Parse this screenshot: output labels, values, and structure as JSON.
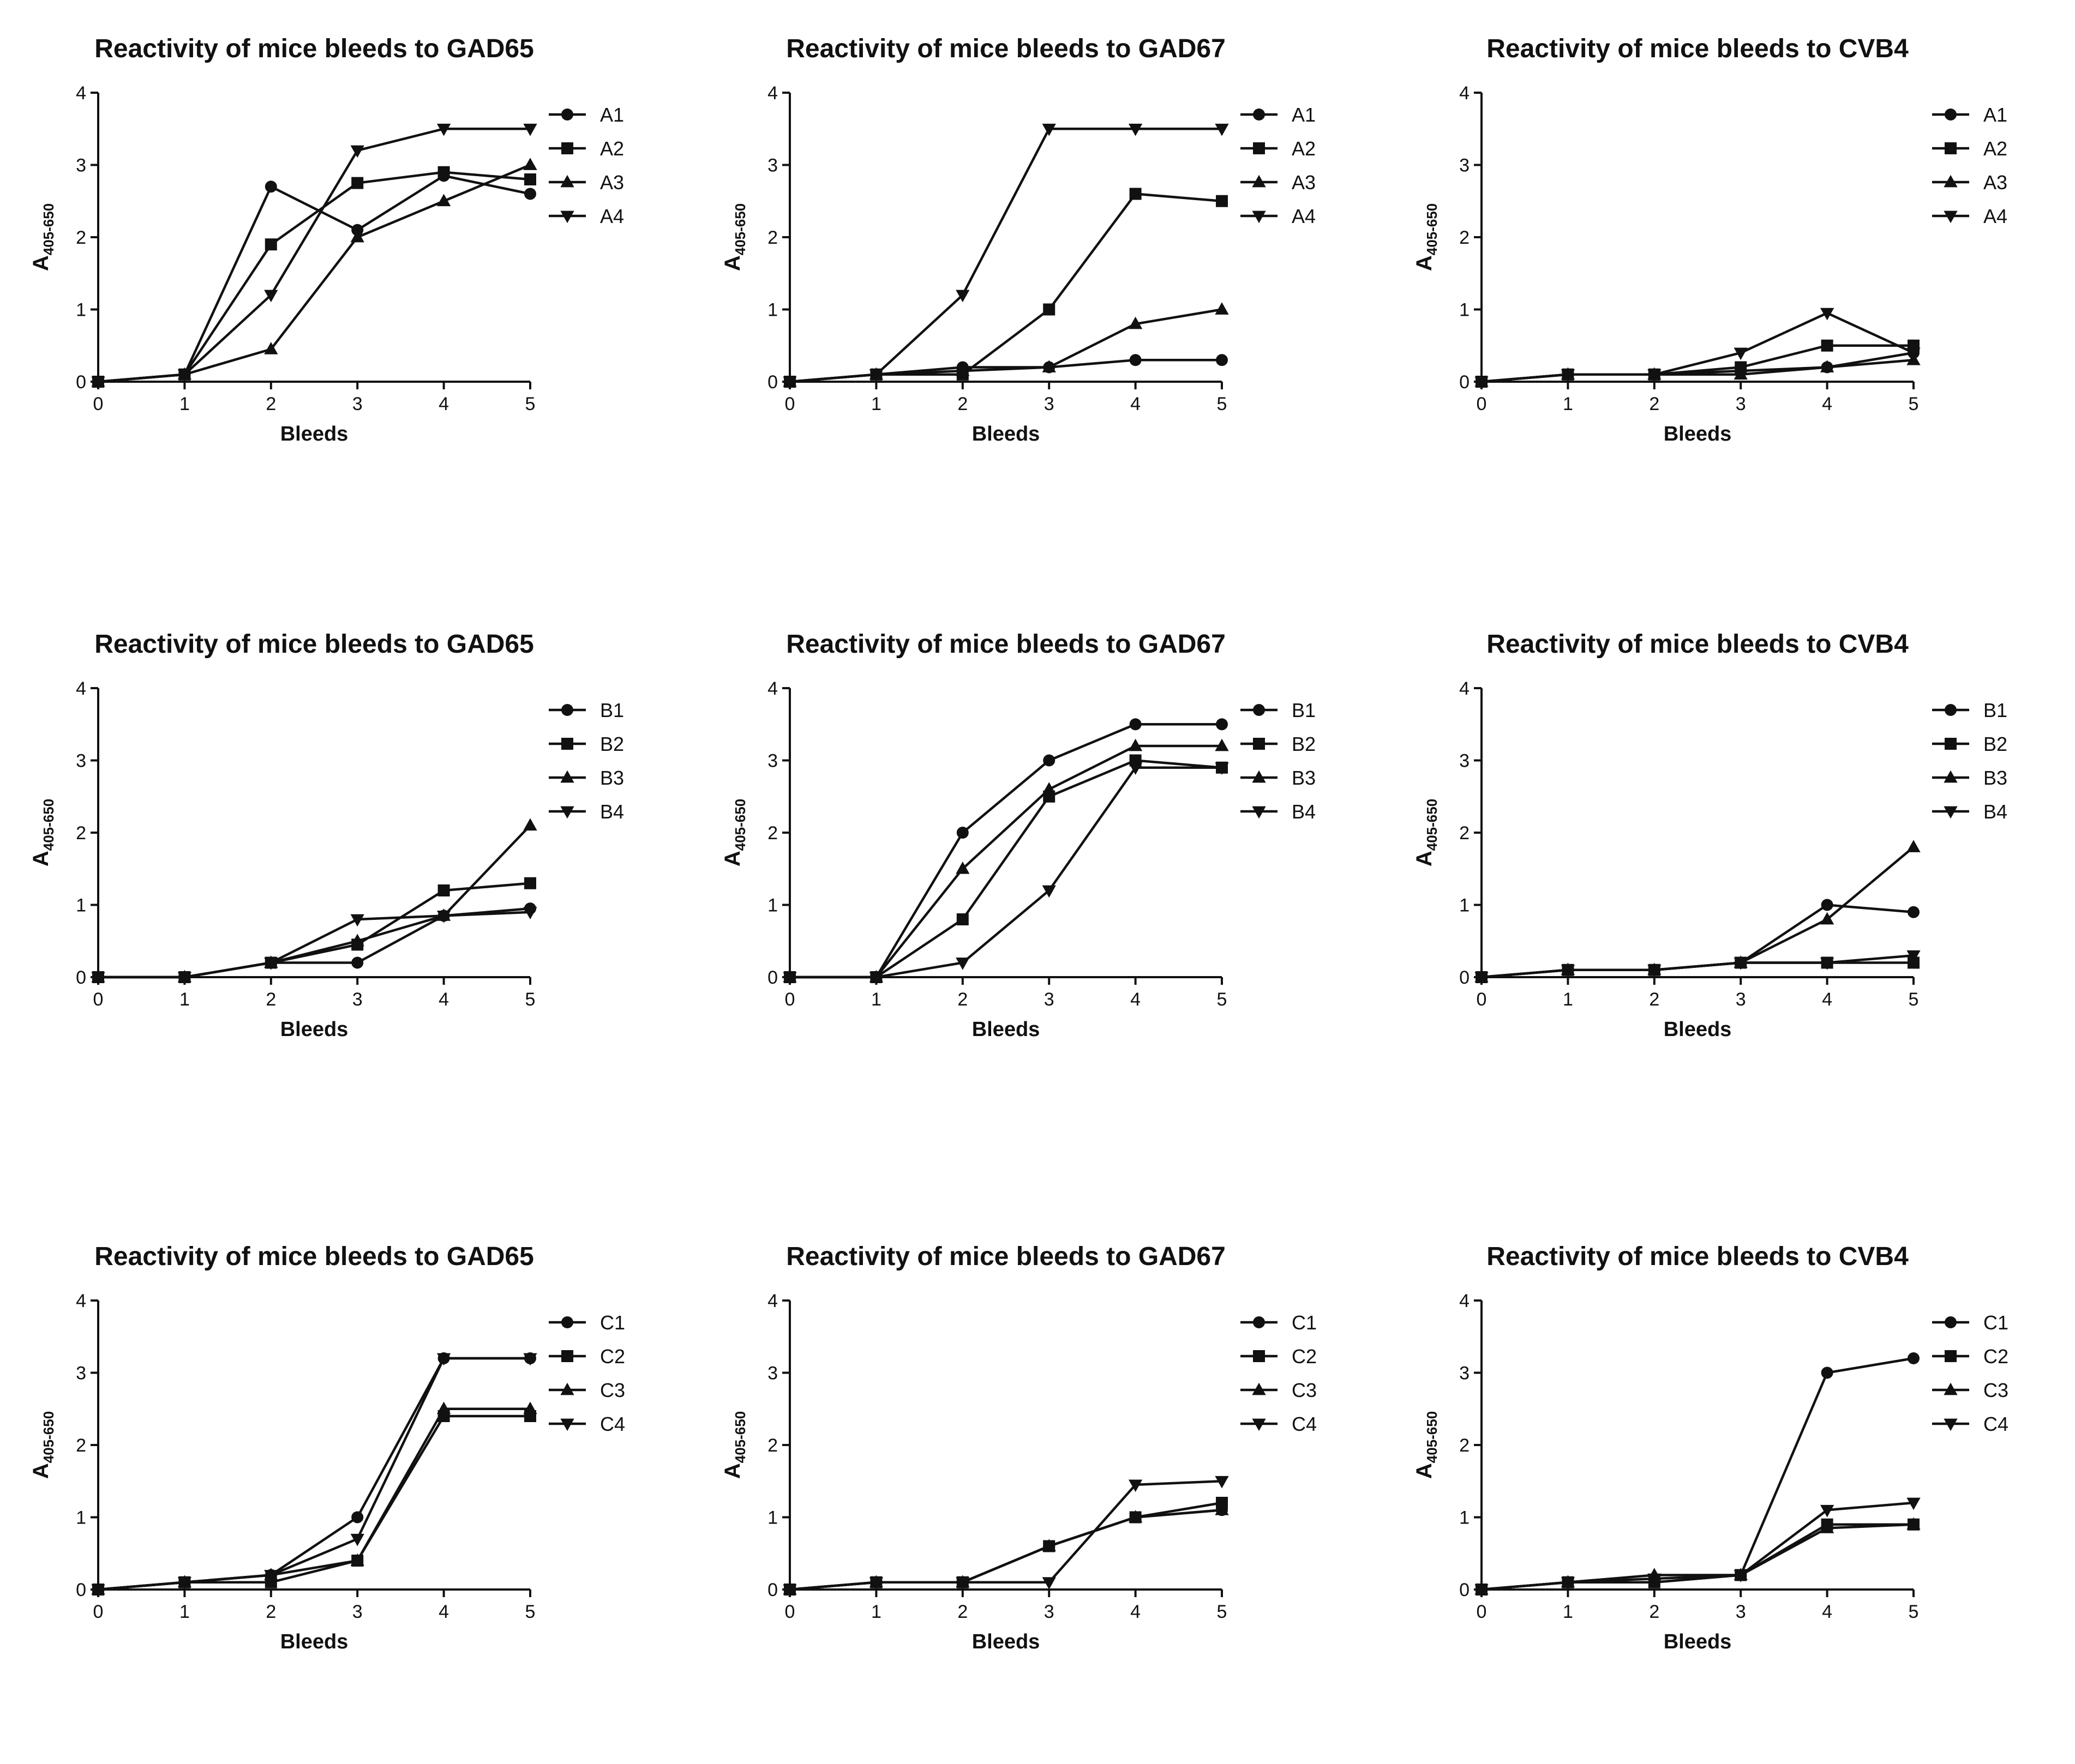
{
  "chart_data": [
    {
      "type": "line",
      "title": "Reactivity of mice bleeds to GAD65",
      "xlabel": "Bleeds",
      "ylabel": "A",
      "ylabel_sub": "405-650",
      "x": [
        0,
        1,
        2,
        3,
        4,
        5
      ],
      "xlim": [
        0,
        5
      ],
      "ylim": [
        0,
        4
      ],
      "yticks": [
        0,
        1,
        2,
        3,
        4
      ],
      "legend": "top-right",
      "series": [
        {
          "name": "A1",
          "marker": "circle",
          "values": [
            0,
            0.1,
            2.7,
            2.1,
            2.85,
            2.6
          ]
        },
        {
          "name": "A2",
          "marker": "square",
          "values": [
            0,
            0.1,
            1.9,
            2.75,
            2.9,
            2.8
          ]
        },
        {
          "name": "A3",
          "marker": "triangle-up",
          "values": [
            0,
            0.1,
            0.45,
            2.0,
            2.5,
            3.0
          ]
        },
        {
          "name": "A4",
          "marker": "triangle-down",
          "values": [
            0,
            0.1,
            1.2,
            3.2,
            3.5,
            3.5
          ]
        }
      ]
    },
    {
      "type": "line",
      "title": "Reactivity of mice bleeds to GAD67",
      "xlabel": "Bleeds",
      "ylabel": "A",
      "ylabel_sub": "405-650",
      "x": [
        0,
        1,
        2,
        3,
        4,
        5
      ],
      "xlim": [
        0,
        5
      ],
      "ylim": [
        0,
        4
      ],
      "yticks": [
        0,
        1,
        2,
        3,
        4
      ],
      "legend": "top-right",
      "series": [
        {
          "name": "A1",
          "marker": "circle",
          "values": [
            0,
            0.1,
            0.2,
            0.2,
            0.3,
            0.3
          ]
        },
        {
          "name": "A2",
          "marker": "square",
          "values": [
            0,
            0.1,
            0.1,
            1.0,
            2.6,
            2.5
          ]
        },
        {
          "name": "A3",
          "marker": "triangle-up",
          "values": [
            0,
            0.1,
            0.15,
            0.2,
            0.8,
            1.0
          ]
        },
        {
          "name": "A4",
          "marker": "triangle-down",
          "values": [
            0,
            0.1,
            1.2,
            3.5,
            3.5,
            3.5
          ]
        }
      ]
    },
    {
      "type": "line",
      "title": "Reactivity of mice bleeds to CVB4",
      "xlabel": "Bleeds",
      "ylabel": "A",
      "ylabel_sub": "405-650",
      "x": [
        0,
        1,
        2,
        3,
        4,
        5
      ],
      "xlim": [
        0,
        5
      ],
      "ylim": [
        0,
        4
      ],
      "yticks": [
        0,
        1,
        2,
        3,
        4
      ],
      "legend": "top-right",
      "series": [
        {
          "name": "A1",
          "marker": "circle",
          "values": [
            0,
            0.1,
            0.1,
            0.15,
            0.2,
            0.4
          ]
        },
        {
          "name": "A2",
          "marker": "square",
          "values": [
            0,
            0.1,
            0.1,
            0.2,
            0.5,
            0.5
          ]
        },
        {
          "name": "A3",
          "marker": "triangle-up",
          "values": [
            0,
            0.1,
            0.1,
            0.1,
            0.2,
            0.3
          ]
        },
        {
          "name": "A4",
          "marker": "triangle-down",
          "values": [
            0,
            0.1,
            0.1,
            0.4,
            0.95,
            0.4
          ]
        }
      ]
    },
    {
      "type": "line",
      "title": "Reactivity of mice bleeds to GAD65",
      "xlabel": "Bleeds",
      "ylabel": "A",
      "ylabel_sub": "405-650",
      "x": [
        0,
        1,
        2,
        3,
        4,
        5
      ],
      "xlim": [
        0,
        5
      ],
      "ylim": [
        0,
        4
      ],
      "yticks": [
        0,
        1,
        2,
        3,
        4
      ],
      "legend": "top-right",
      "series": [
        {
          "name": "B1",
          "marker": "circle",
          "values": [
            0,
            0,
            0.2,
            0.2,
            0.85,
            0.95
          ]
        },
        {
          "name": "B2",
          "marker": "square",
          "values": [
            0,
            0,
            0.2,
            0.45,
            1.2,
            1.3
          ]
        },
        {
          "name": "B3",
          "marker": "triangle-up",
          "values": [
            0,
            0,
            0.2,
            0.5,
            0.85,
            2.1
          ]
        },
        {
          "name": "B4",
          "marker": "triangle-down",
          "values": [
            0,
            0,
            0.2,
            0.8,
            0.85,
            0.9
          ]
        }
      ]
    },
    {
      "type": "line",
      "title": "Reactivity of mice bleeds to GAD67",
      "xlabel": "Bleeds",
      "ylabel": "A",
      "ylabel_sub": "405-650",
      "x": [
        0,
        1,
        2,
        3,
        4,
        5
      ],
      "xlim": [
        0,
        5
      ],
      "ylim": [
        0,
        4
      ],
      "yticks": [
        0,
        1,
        2,
        3,
        4
      ],
      "legend": "top-right",
      "series": [
        {
          "name": "B1",
          "marker": "circle",
          "values": [
            0,
            0,
            2.0,
            3.0,
            3.5,
            3.5
          ]
        },
        {
          "name": "B2",
          "marker": "square",
          "values": [
            0,
            0,
            0.8,
            2.5,
            3.0,
            2.9
          ]
        },
        {
          "name": "B3",
          "marker": "triangle-up",
          "values": [
            0,
            0,
            1.5,
            2.6,
            3.2,
            3.2
          ]
        },
        {
          "name": "B4",
          "marker": "triangle-down",
          "values": [
            0,
            0,
            0.2,
            1.2,
            2.9,
            2.9
          ]
        }
      ]
    },
    {
      "type": "line",
      "title": "Reactivity of mice bleeds to CVB4",
      "xlabel": "Bleeds",
      "ylabel": "A",
      "ylabel_sub": "405-650",
      "x": [
        0,
        1,
        2,
        3,
        4,
        5
      ],
      "xlim": [
        0,
        5
      ],
      "ylim": [
        0,
        4
      ],
      "yticks": [
        0,
        1,
        2,
        3,
        4
      ],
      "legend": "top-right",
      "series": [
        {
          "name": "B1",
          "marker": "circle",
          "values": [
            0,
            0.1,
            0.1,
            0.2,
            1.0,
            0.9
          ]
        },
        {
          "name": "B2",
          "marker": "square",
          "values": [
            0,
            0.1,
            0.1,
            0.2,
            0.2,
            0.2
          ]
        },
        {
          "name": "B3",
          "marker": "triangle-up",
          "values": [
            0,
            0.1,
            0.1,
            0.2,
            0.8,
            1.8
          ]
        },
        {
          "name": "B4",
          "marker": "triangle-down",
          "values": [
            0,
            0.1,
            0.1,
            0.2,
            0.2,
            0.3
          ]
        }
      ]
    },
    {
      "type": "line",
      "title": "Reactivity of mice bleeds to GAD65",
      "xlabel": "Bleeds",
      "ylabel": "A",
      "ylabel_sub": "405-650",
      "x": [
        0,
        1,
        2,
        3,
        4,
        5
      ],
      "xlim": [
        0,
        5
      ],
      "ylim": [
        0,
        4
      ],
      "yticks": [
        0,
        1,
        2,
        3,
        4
      ],
      "legend": "top-right",
      "series": [
        {
          "name": "C1",
          "marker": "circle",
          "values": [
            0,
            0.1,
            0.2,
            1.0,
            3.2,
            3.2
          ]
        },
        {
          "name": "C2",
          "marker": "square",
          "values": [
            0,
            0.1,
            0.1,
            0.4,
            2.4,
            2.4
          ]
        },
        {
          "name": "C3",
          "marker": "triangle-up",
          "values": [
            0,
            0.1,
            0.2,
            0.4,
            2.5,
            2.5
          ]
        },
        {
          "name": "C4",
          "marker": "triangle-down",
          "values": [
            0,
            0.1,
            0.2,
            0.7,
            3.2,
            3.2
          ]
        }
      ]
    },
    {
      "type": "line",
      "title": "Reactivity of mice bleeds to GAD67",
      "xlabel": "Bleeds",
      "ylabel": "A",
      "ylabel_sub": "405-650",
      "x": [
        0,
        1,
        2,
        3,
        4,
        5
      ],
      "xlim": [
        0,
        5
      ],
      "ylim": [
        0,
        4
      ],
      "yticks": [
        0,
        1,
        2,
        3,
        4
      ],
      "legend": "top-right",
      "series": [
        {
          "name": "C1",
          "marker": "circle",
          "values": [
            0,
            0.1,
            0.1,
            0.6,
            1.0,
            1.1
          ]
        },
        {
          "name": "C2",
          "marker": "square",
          "values": [
            0,
            0.1,
            0.1,
            0.6,
            1.0,
            1.2
          ]
        },
        {
          "name": "C3",
          "marker": "triangle-up",
          "values": [
            0,
            0.1,
            0.1,
            0.6,
            1.0,
            1.1
          ]
        },
        {
          "name": "C4",
          "marker": "triangle-down",
          "values": [
            0,
            0.1,
            0.1,
            0.1,
            1.45,
            1.5
          ]
        }
      ]
    },
    {
      "type": "line",
      "title": "Reactivity of mice bleeds to CVB4",
      "xlabel": "Bleeds",
      "ylabel": "A",
      "ylabel_sub": "405-650",
      "x": [
        0,
        1,
        2,
        3,
        4,
        5
      ],
      "xlim": [
        0,
        5
      ],
      "ylim": [
        0,
        4
      ],
      "yticks": [
        0,
        1,
        2,
        3,
        4
      ],
      "legend": "top-right",
      "series": [
        {
          "name": "C1",
          "marker": "circle",
          "values": [
            0,
            0.1,
            0.1,
            0.2,
            3.0,
            3.2
          ]
        },
        {
          "name": "C2",
          "marker": "square",
          "values": [
            0,
            0.1,
            0.1,
            0.2,
            0.9,
            0.9
          ]
        },
        {
          "name": "C3",
          "marker": "triangle-up",
          "values": [
            0,
            0.1,
            0.2,
            0.2,
            0.85,
            0.9
          ]
        },
        {
          "name": "C4",
          "marker": "triangle-down",
          "values": [
            0,
            0.1,
            0.15,
            0.2,
            1.1,
            1.2
          ]
        }
      ]
    }
  ]
}
